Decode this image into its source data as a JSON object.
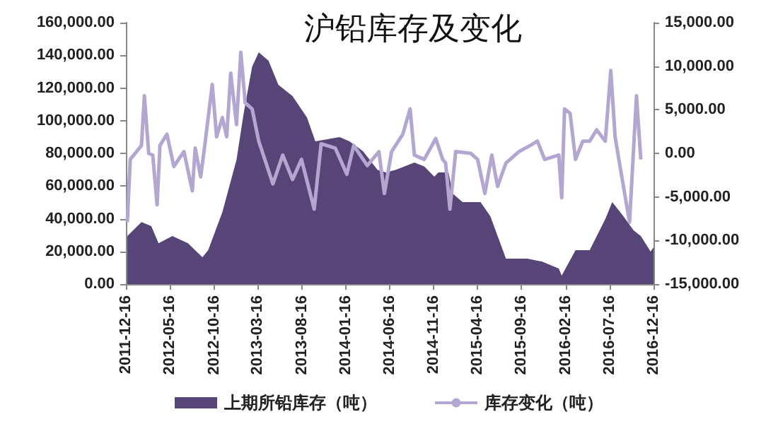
{
  "chart_data": {
    "type": "area",
    "title": "沪铅库存及变化",
    "series": [
      {
        "name": "上期所铅库存（吨）",
        "color": "#574578",
        "x": [
          "2011-12-21",
          "2012-02-08",
          "2012-03-13",
          "2012-04-07",
          "2012-05-25",
          "2012-07-18",
          "2012-09-06",
          "2012-09-26",
          "2012-11-14",
          "2013-01-02",
          "2013-01-27",
          "2013-02-25",
          "2013-03-20",
          "2013-04-23",
          "2013-05-27",
          "2013-07-15",
          "2013-09-03",
          "2013-10-02",
          "2013-12-25",
          "2014-01-28",
          "2014-03-16",
          "2014-05-05",
          "2014-06-03",
          "2014-07-08",
          "2014-09-10",
          "2014-10-14",
          "2014-11-18",
          "2014-12-02",
          "2015-01-06",
          "2015-01-21",
          "2015-02-24",
          "2015-04-27",
          "2015-05-31",
          "2015-07-24",
          "2015-10-06",
          "2015-11-25",
          "2016-01-23",
          "2016-02-02",
          "2016-03-21",
          "2016-05-09",
          "2016-07-02",
          "2016-07-26",
          "2016-08-30",
          "2016-10-08",
          "2016-11-02",
          "2016-12-06",
          "2016-12-16"
        ],
        "values": [
          29400,
          38000,
          35500,
          25000,
          29400,
          25000,
          16400,
          20800,
          44000,
          76000,
          104600,
          133000,
          141800,
          136600,
          122000,
          115000,
          102000,
          87400,
          90000,
          87400,
          81300,
          70000,
          68300,
          70000,
          74400,
          72000,
          65700,
          68300,
          68300,
          55400,
          50200,
          50200,
          41500,
          15600,
          15600,
          13800,
          9500,
          5200,
          20800,
          20800,
          39800,
          50200,
          42400,
          32900,
          29400,
          19900,
          22500
        ]
      },
      {
        "name": "库存变化（吨）",
        "type": "line",
        "axis": "y2",
        "color": "#b3a6d1",
        "x": [
          "2011-12-21",
          "2011-12-31",
          "2012-02-08",
          "2012-02-18",
          "2012-03-04",
          "2012-03-18",
          "2012-04-02",
          "2012-04-12",
          "2012-05-06",
          "2012-05-30",
          "2012-07-04",
          "2012-08-02",
          "2012-08-12",
          "2012-08-31",
          "2012-09-16",
          "2012-10-10",
          "2012-10-25",
          "2012-11-14",
          "2012-11-29",
          "2012-12-13",
          "2013-01-02",
          "2013-01-17",
          "2013-02-01",
          "2013-02-25",
          "2013-03-20",
          "2013-05-08",
          "2013-06-11",
          "2013-07-15",
          "2013-08-15",
          "2013-09-28",
          "2013-10-22",
          "2013-12-10",
          "2014-01-19",
          "2014-02-12",
          "2014-03-31",
          "2014-05-10",
          "2014-05-29",
          "2014-06-23",
          "2014-08-01",
          "2014-08-26",
          "2014-09-10",
          "2014-10-14",
          "2014-11-23",
          "2014-12-17",
          "2014-12-27",
          "2015-01-11",
          "2015-01-31",
          "2015-03-24",
          "2015-04-17",
          "2015-05-12",
          "2015-06-05",
          "2015-06-25",
          "2015-07-24",
          "2015-09-07",
          "2015-10-16",
          "2015-11-10",
          "2015-12-05",
          "2016-01-23",
          "2016-02-02",
          "2016-02-12",
          "2016-03-02",
          "2016-03-21",
          "2016-04-15",
          "2016-05-09",
          "2016-06-02",
          "2016-07-02",
          "2016-07-21",
          "2016-08-05",
          "2016-08-20",
          "2016-09-24",
          "2016-10-18",
          "2016-11-02"
        ],
        "values": [
          -7900,
          -700,
          900,
          6600,
          0,
          -200,
          -5900,
          900,
          2200,
          -1500,
          200,
          -4300,
          600,
          -2700,
          1400,
          7900,
          1900,
          4100,
          1900,
          9200,
          3300,
          11600,
          5800,
          5100,
          1400,
          -3500,
          -200,
          -3000,
          -700,
          -6400,
          1100,
          600,
          -2400,
          900,
          -1400,
          200,
          -4600,
          200,
          2200,
          5100,
          -200,
          -700,
          1700,
          -700,
          -1100,
          -6400,
          200,
          0,
          -700,
          -4600,
          -200,
          -3800,
          -1100,
          200,
          900,
          1400,
          -700,
          -200,
          -5100,
          5100,
          4600,
          -700,
          1400,
          1400,
          2700,
          1400,
          9500,
          1900,
          -1100,
          -7900,
          6600,
          -700
        ]
      }
    ],
    "xlim": [
      "2011-12-16",
      "2016-12-16"
    ],
    "xticks": [
      "2011-12-16",
      "2012-05-16",
      "2012-10-16",
      "2013-03-16",
      "2013-08-16",
      "2014-01-16",
      "2014-06-16",
      "2014-11-16",
      "2015-04-16",
      "2015-09-16",
      "2016-02-16",
      "2016-07-16",
      "2016-12-16"
    ],
    "ylim": [
      0,
      160000
    ],
    "yticks": [
      {
        "value": 0,
        "label": "0.00"
      },
      {
        "value": 20000,
        "label": "20,000.00"
      },
      {
        "value": 40000,
        "label": "40,000.00"
      },
      {
        "value": 60000,
        "label": "60,000.00"
      },
      {
        "value": 80000,
        "label": "80,000.00"
      },
      {
        "value": 100000,
        "label": "100,000.00"
      },
      {
        "value": 120000,
        "label": "120,000.00"
      },
      {
        "value": 140000,
        "label": "140,000.00"
      },
      {
        "value": 160000,
        "label": "160,000.00"
      }
    ],
    "y2lim": [
      -15000,
      15000
    ],
    "y2ticks": [
      {
        "value": -15000,
        "label": "-15,000.00"
      },
      {
        "value": -10000,
        "label": "-10,000.00"
      },
      {
        "value": -5000,
        "label": "-5,000.00"
      },
      {
        "value": 0,
        "label": "0.00"
      },
      {
        "value": 5000,
        "label": "5,000.00"
      },
      {
        "value": 10000,
        "label": "10,000.00"
      },
      {
        "value": 15000,
        "label": "15,000.00"
      }
    ],
    "legend": "bottom",
    "grid": false,
    "marker": "none"
  }
}
